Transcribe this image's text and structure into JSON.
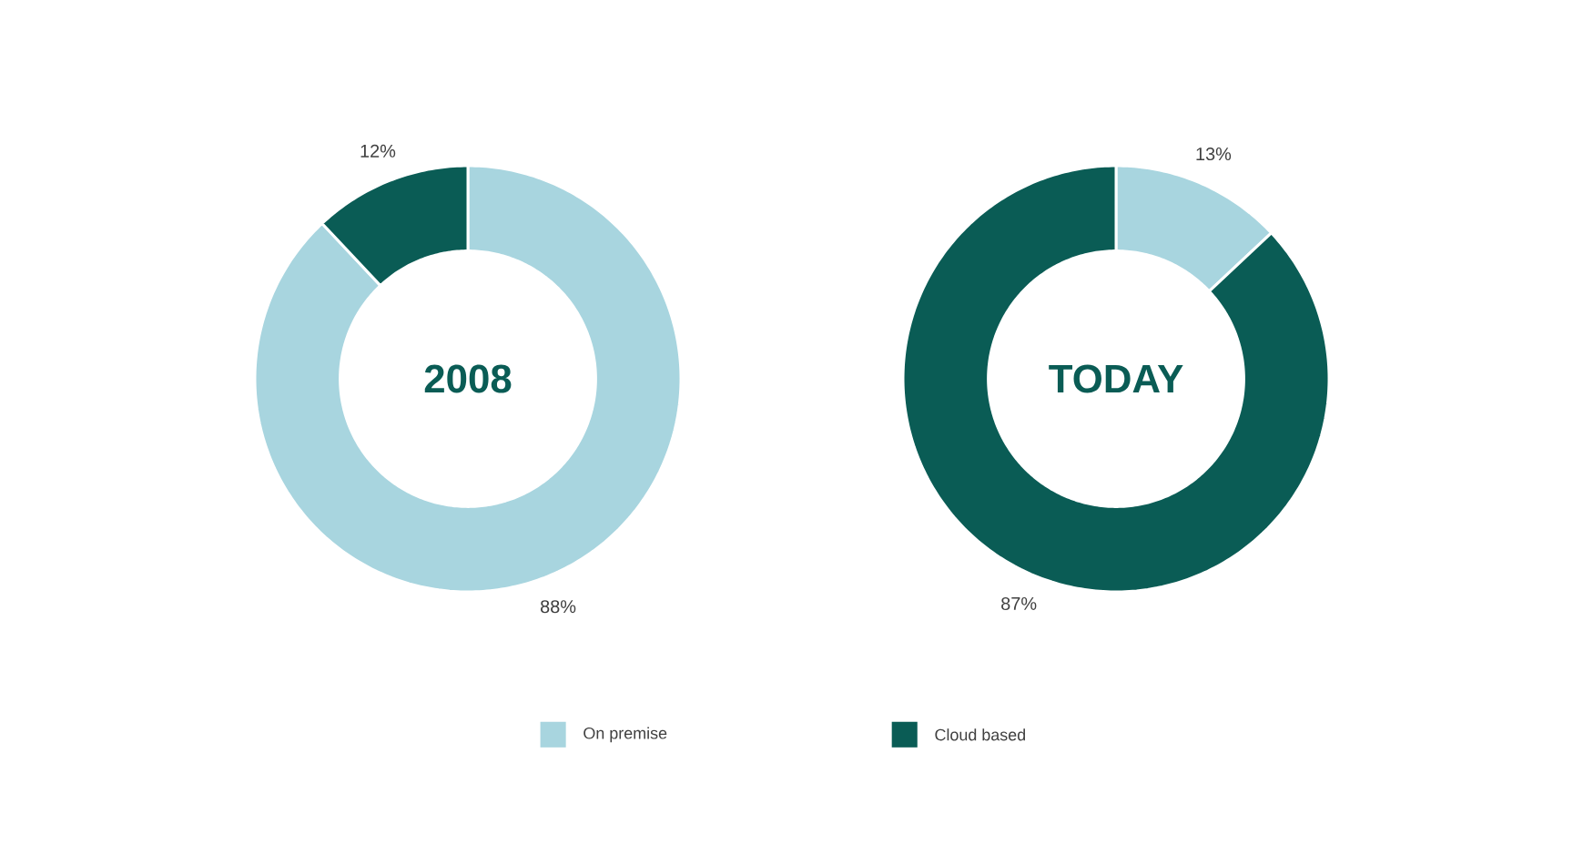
{
  "chart_data": {
    "type": "donut",
    "categories": [
      "On premise",
      "Cloud based"
    ],
    "colors": [
      "#a8d5df",
      "#0a5c55"
    ],
    "legend": "bottom",
    "series": [
      {
        "name": "2008",
        "values": [
          88,
          12
        ],
        "value_labels": [
          "88%",
          "12%"
        ]
      },
      {
        "name": "TODAY",
        "values": [
          13,
          87
        ],
        "value_labels": [
          "13%",
          "87%"
        ]
      }
    ]
  }
}
